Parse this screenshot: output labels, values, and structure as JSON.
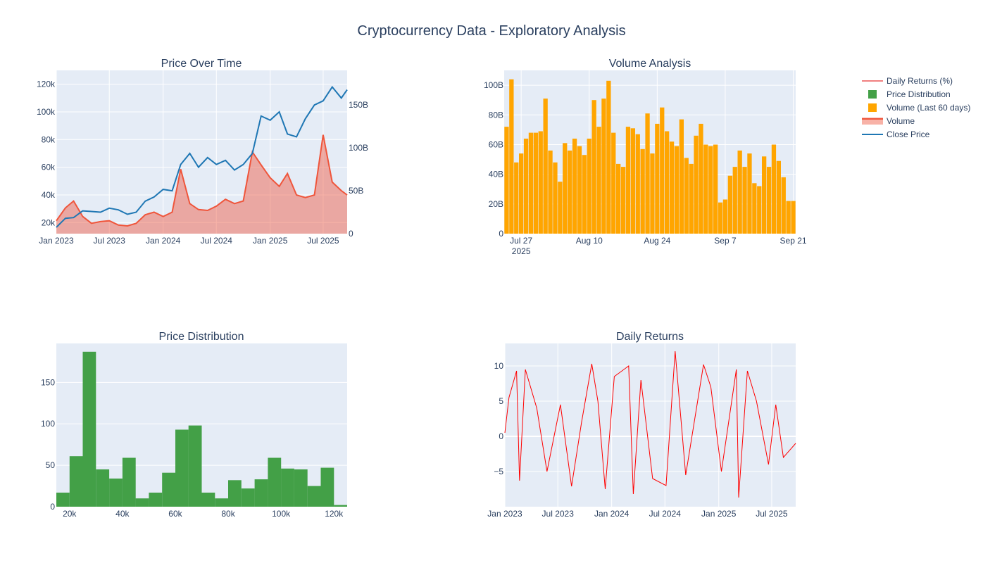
{
  "title": "Cryptocurrency Data - Exploratory Analysis",
  "colors": {
    "plot_bg": "#e5ecf6",
    "grid": "#ffffff",
    "close": "#1f77b4",
    "volume": "#ef553b",
    "volume_fill": "rgba(239,85,59,0.45)",
    "volume60": "#ffa500",
    "hist": "#43a047",
    "returns": "#ff0000",
    "text": "#2a3f5f"
  },
  "legend": {
    "placement": "right",
    "items": [
      {
        "label": "Daily Returns (%)",
        "kind": "line",
        "color": "#e00000"
      },
      {
        "label": "Price Distribution",
        "kind": "square",
        "color": "#43a047"
      },
      {
        "label": "Volume (Last 60 days)",
        "kind": "square",
        "color": "#ffa500"
      },
      {
        "label": "Volume",
        "kind": "band",
        "color": "#ef553b"
      },
      {
        "label": "Close Price",
        "kind": "line",
        "color": "#1f77b4"
      }
    ]
  },
  "chart_data": [
    {
      "type": "line",
      "title": "Price Over Time",
      "x_range": [
        "2023-01-01",
        "2025-09-21"
      ],
      "x_ticks": [
        "Jan 2023",
        "Jul 2023",
        "Jan 2024",
        "Jul 2024",
        "Jan 2025",
        "Jul 2025"
      ],
      "y_ticks": [
        "20k",
        "40k",
        "60k",
        "80k",
        "100k",
        "120k"
      ],
      "y_range": [
        12000,
        130000
      ],
      "y2_ticks": [
        "0",
        "50B",
        "100B",
        "150B"
      ],
      "y2_range": [
        0,
        190000000000
      ],
      "series": [
        {
          "name": "Close Price",
          "axis": "y",
          "points": [
            [
              "2023-01-01",
              16600
            ],
            [
              "2023-02-01",
              23100
            ],
            [
              "2023-03-01",
              23600
            ],
            [
              "2023-04-01",
              28500
            ],
            [
              "2023-05-01",
              28000
            ],
            [
              "2023-06-01",
              27500
            ],
            [
              "2023-07-01",
              30400
            ],
            [
              "2023-08-01",
              29200
            ],
            [
              "2023-09-01",
              26000
            ],
            [
              "2023-10-01",
              27500
            ],
            [
              "2023-11-01",
              35500
            ],
            [
              "2023-12-01",
              38500
            ],
            [
              "2024-01-01",
              44000
            ],
            [
              "2024-02-01",
              43000
            ],
            [
              "2024-03-01",
              62000
            ],
            [
              "2024-04-01",
              70000
            ],
            [
              "2024-05-01",
              60000
            ],
            [
              "2024-06-01",
              67000
            ],
            [
              "2024-07-01",
              62000
            ],
            [
              "2024-08-01",
              65000
            ],
            [
              "2024-09-01",
              58000
            ],
            [
              "2024-10-01",
              62000
            ],
            [
              "2024-11-01",
              70000
            ],
            [
              "2024-12-01",
              97000
            ],
            [
              "2025-01-01",
              94000
            ],
            [
              "2025-02-01",
              100000
            ],
            [
              "2025-03-01",
              84000
            ],
            [
              "2025-04-01",
              82000
            ],
            [
              "2025-05-01",
              95000
            ],
            [
              "2025-06-01",
              105000
            ],
            [
              "2025-07-01",
              108000
            ],
            [
              "2025-08-01",
              118000
            ],
            [
              "2025-09-01",
              110000
            ],
            [
              "2025-09-21",
              116000
            ]
          ]
        },
        {
          "name": "Volume",
          "axis": "y2",
          "points": [
            [
              "2023-01-01",
              15000000000
            ],
            [
              "2023-02-01",
              30000000000
            ],
            [
              "2023-03-01",
              38000000000
            ],
            [
              "2023-04-01",
              20000000000
            ],
            [
              "2023-05-01",
              12000000000
            ],
            [
              "2023-06-01",
              14000000000
            ],
            [
              "2023-07-01",
              15000000000
            ],
            [
              "2023-08-01",
              10000000000
            ],
            [
              "2023-09-01",
              9000000000
            ],
            [
              "2023-10-01",
              12000000000
            ],
            [
              "2023-11-01",
              22000000000
            ],
            [
              "2023-12-01",
              25000000000
            ],
            [
              "2024-01-01",
              20000000000
            ],
            [
              "2024-02-01",
              25000000000
            ],
            [
              "2024-03-01",
              75000000000
            ],
            [
              "2024-04-01",
              35000000000
            ],
            [
              "2024-05-01",
              28000000000
            ],
            [
              "2024-06-01",
              27000000000
            ],
            [
              "2024-07-01",
              32000000000
            ],
            [
              "2024-08-01",
              40000000000
            ],
            [
              "2024-09-01",
              35000000000
            ],
            [
              "2024-10-01",
              38000000000
            ],
            [
              "2024-11-01",
              95000000000
            ],
            [
              "2024-12-01",
              80000000000
            ],
            [
              "2025-01-01",
              65000000000
            ],
            [
              "2025-02-01",
              55000000000
            ],
            [
              "2025-03-01",
              70000000000
            ],
            [
              "2025-04-01",
              45000000000
            ],
            [
              "2025-05-01",
              42000000000
            ],
            [
              "2025-06-01",
              45000000000
            ],
            [
              "2025-07-01",
              115000000000
            ],
            [
              "2025-08-01",
              60000000000
            ],
            [
              "2025-09-01",
              50000000000
            ],
            [
              "2025-09-21",
              45000000000
            ]
          ]
        }
      ]
    },
    {
      "type": "bar",
      "title": "Volume Analysis",
      "x_range": [
        "2025-07-23",
        "2025-09-21"
      ],
      "x_ticks": [
        "Jul 27\n2025",
        "Aug 10",
        "Aug 24",
        "Sep 7",
        "Sep 21"
      ],
      "y_ticks": [
        "0",
        "20B",
        "40B",
        "60B",
        "80B",
        "100B"
      ],
      "y_range": [
        0,
        110000000000
      ],
      "series": [
        {
          "name": "Volume (Last 60 days)",
          "start_date": "2025-07-23",
          "values": [
            72,
            104,
            48,
            54,
            64,
            68,
            68,
            69,
            91,
            56,
            48,
            35,
            61,
            56,
            64,
            59,
            53,
            64,
            90,
            72,
            91,
            103,
            68,
            47,
            45,
            72,
            71,
            67,
            57,
            81,
            54,
            74,
            85,
            69,
            62,
            59,
            77,
            51,
            47,
            66,
            74,
            60,
            59,
            60,
            21,
            23,
            39,
            45,
            56,
            45,
            54,
            34,
            32,
            52,
            45,
            60,
            49,
            38,
            22,
            22
          ],
          "value_unit": "B"
        }
      ]
    },
    {
      "type": "bar",
      "title": "Price Distribution",
      "x_ticks": [
        "20k",
        "40k",
        "60k",
        "80k",
        "100k",
        "120k"
      ],
      "x_range": [
        15000,
        125000
      ],
      "y_ticks": [
        "0",
        "50",
        "100",
        "150"
      ],
      "y_range": [
        0,
        197
      ],
      "bin_width": 5000,
      "series": [
        {
          "name": "Price Distribution",
          "bin_starts": [
            15000,
            20000,
            25000,
            30000,
            35000,
            40000,
            45000,
            50000,
            55000,
            60000,
            65000,
            70000,
            75000,
            80000,
            85000,
            90000,
            95000,
            100000,
            105000,
            110000,
            115000,
            120000
          ],
          "values": [
            17,
            61,
            187,
            45,
            34,
            59,
            10,
            17,
            41,
            93,
            98,
            17,
            10,
            32,
            22,
            33,
            59,
            46,
            45,
            25,
            47,
            2
          ]
        }
      ]
    },
    {
      "type": "line",
      "title": "Daily Returns",
      "x_range": [
        "2023-01-01",
        "2025-09-21"
      ],
      "x_ticks": [
        "Jan 2023",
        "Jul 2023",
        "Jan 2024",
        "Jul 2024",
        "Jan 2025",
        "Jul 2025"
      ],
      "y_ticks": [
        "−5",
        "0",
        "5",
        "10"
      ],
      "y_range": [
        -10,
        13.2
      ],
      "series": [
        {
          "name": "Daily Returns (%)",
          "points": [
            [
              "2023-01-01",
              0.5
            ],
            [
              "2023-01-15",
              5.5
            ],
            [
              "2023-02-10",
              9.3
            ],
            [
              "2023-02-20",
              -6.3
            ],
            [
              "2023-03-12",
              9.5
            ],
            [
              "2023-04-20",
              4.0
            ],
            [
              "2023-05-25",
              -5.0
            ],
            [
              "2023-07-10",
              4.5
            ],
            [
              "2023-08-17",
              -7.1
            ],
            [
              "2023-09-20",
              2.0
            ],
            [
              "2023-10-25",
              10.3
            ],
            [
              "2023-11-15",
              5.0
            ],
            [
              "2023-12-10",
              -7.5
            ],
            [
              "2024-01-10",
              8.5
            ],
            [
              "2024-02-28",
              10.0
            ],
            [
              "2024-03-15",
              -8.2
            ],
            [
              "2024-04-10",
              8.0
            ],
            [
              "2024-05-20",
              -6.0
            ],
            [
              "2024-07-05",
              -7.0
            ],
            [
              "2024-08-05",
              12.1
            ],
            [
              "2024-09-10",
              -5.5
            ],
            [
              "2024-11-10",
              10.2
            ],
            [
              "2024-12-05",
              7.0
            ],
            [
              "2025-01-10",
              -5.0
            ],
            [
              "2025-03-02",
              9.5
            ],
            [
              "2025-03-10",
              -8.7
            ],
            [
              "2025-04-09",
              9.3
            ],
            [
              "2025-05-10",
              5.0
            ],
            [
              "2025-06-20",
              -4.0
            ],
            [
              "2025-07-15",
              4.5
            ],
            [
              "2025-08-10",
              -3.0
            ],
            [
              "2025-09-21",
              -1.0
            ]
          ]
        }
      ]
    }
  ]
}
